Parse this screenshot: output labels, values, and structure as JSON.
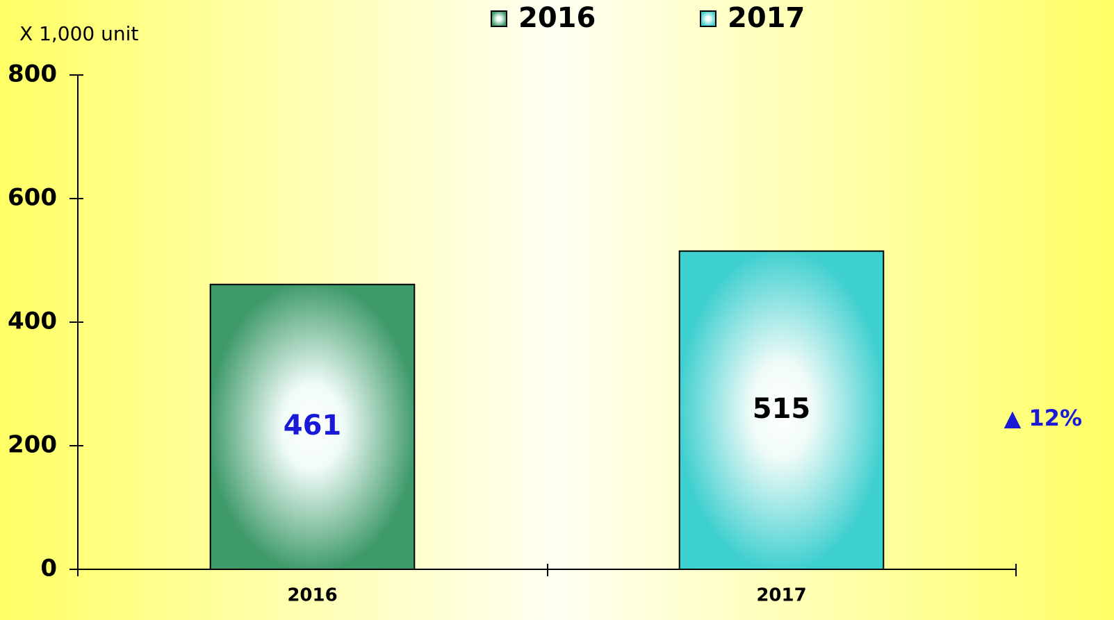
{
  "chart_data": {
    "type": "bar",
    "y_axis_label": "X 1,000 unit",
    "categories": [
      "2016",
      "2017"
    ],
    "series": [
      {
        "name": "2016",
        "color": "#3f9a6a",
        "label_color": "#1a1ad6",
        "values": [
          461,
          null
        ]
      },
      {
        "name": "2017",
        "color": "#3ecfcf",
        "label_color": "#000000",
        "values": [
          null,
          515
        ]
      }
    ],
    "ylim": [
      0,
      800
    ],
    "yticks": [
      0,
      200,
      400,
      600,
      800
    ],
    "annotation": "▲ 12%"
  }
}
